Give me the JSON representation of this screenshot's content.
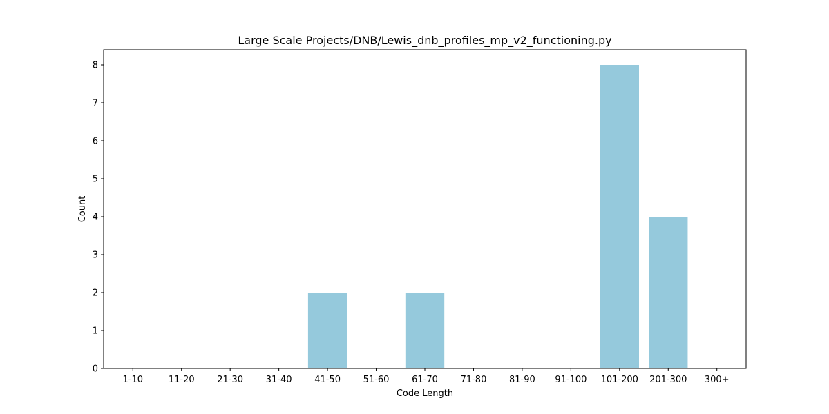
{
  "chart_data": {
    "type": "bar",
    "title": "Large Scale Projects/DNB/Lewis_dnb_profiles_mp_v2_functioning.py",
    "xlabel": "Code Length",
    "ylabel": "Count",
    "categories": [
      "1-10",
      "11-20",
      "21-30",
      "31-40",
      "41-50",
      "51-60",
      "61-70",
      "71-80",
      "81-90",
      "91-100",
      "101-200",
      "201-300",
      "300+"
    ],
    "values": [
      0,
      0,
      0,
      0,
      2,
      0,
      2,
      0,
      0,
      0,
      8,
      4,
      0
    ],
    "ylim": [
      0,
      8.4
    ],
    "yticks": [
      0,
      1,
      2,
      3,
      4,
      5,
      6,
      7,
      8
    ],
    "bar_color": "#95c9dc",
    "grid": false,
    "legend": "none"
  }
}
